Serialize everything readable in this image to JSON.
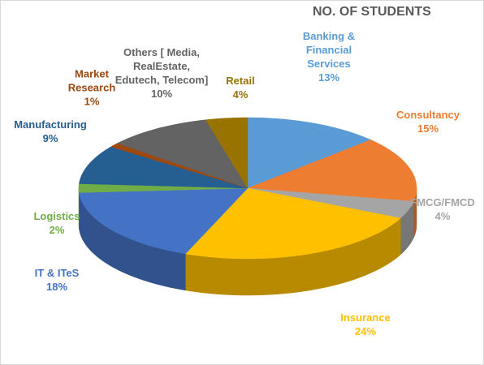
{
  "chart_data": {
    "type": "pie3d",
    "title": "NO. OF STUDENTS",
    "categories": [
      "Banking & Financial Services",
      "Consultancy",
      "FMCG/FMCD",
      "Insurance",
      "IT & ITeS",
      "Logistics",
      "Manufacturing",
      "Market Research",
      "Others [ Media, RealEstate, Edutech, Telecom]",
      "Retail"
    ],
    "values": [
      13,
      15,
      4,
      24,
      18,
      2,
      9,
      1,
      10,
      4
    ],
    "value_labels": [
      "13%",
      "15%",
      "4%",
      "24%",
      "18%",
      "2%",
      "9%",
      "1%",
      "10%",
      "4%"
    ],
    "colors": [
      "#5b9bd5",
      "#ed7d31",
      "#a5a5a5",
      "#ffc000",
      "#4472c4",
      "#70ad47",
      "#255e91",
      "#9e480e",
      "#636363",
      "#997300"
    ]
  }
}
